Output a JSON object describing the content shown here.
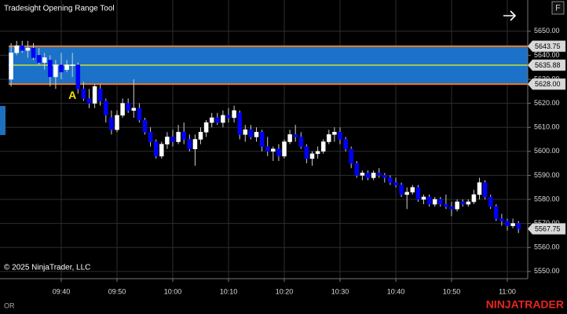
{
  "chart_data": {
    "type": "candlestick",
    "title": "Tradesight Opening Range Tool",
    "categories": [
      "09:31",
      "09:32",
      "09:33",
      "09:34",
      "09:35",
      "09:36",
      "09:37",
      "09:38",
      "09:39",
      "09:40",
      "09:41",
      "09:42",
      "09:43",
      "09:44",
      "09:45",
      "09:46",
      "09:47",
      "09:48",
      "09:49",
      "09:50",
      "09:51",
      "09:52",
      "09:53",
      "09:54",
      "09:55",
      "09:56",
      "09:57",
      "09:58",
      "09:59",
      "10:00",
      "10:01",
      "10:02",
      "10:03",
      "10:04",
      "10:05",
      "10:06",
      "10:07",
      "10:08",
      "10:09",
      "10:10",
      "10:11",
      "10:12",
      "10:13",
      "10:14",
      "10:15",
      "10:16",
      "10:17",
      "10:18",
      "10:19",
      "10:20",
      "10:21",
      "10:22",
      "10:23",
      "10:24",
      "10:25",
      "10:26",
      "10:27",
      "10:28",
      "10:29",
      "10:30",
      "10:31",
      "10:32",
      "10:33",
      "10:34",
      "10:35",
      "10:36",
      "10:37",
      "10:38",
      "10:39",
      "10:40",
      "10:41",
      "10:42",
      "10:43",
      "10:44",
      "10:45",
      "10:46",
      "10:47",
      "10:48",
      "10:49",
      "10:50",
      "10:51",
      "10:52",
      "10:53",
      "10:54",
      "10:55",
      "10:56",
      "10:57",
      "10:58",
      "10:59",
      "11:00",
      "11:01",
      "11:02"
    ],
    "open": [
      5630,
      5641,
      5644,
      5642,
      5643,
      5640,
      5637,
      5638,
      5631,
      5636,
      5634,
      5636,
      5636,
      5626,
      5622,
      5620,
      5626,
      5621,
      5614,
      5609,
      5615,
      5620,
      5617,
      5618,
      5613,
      5608,
      5604,
      5598,
      5603,
      5606,
      5604,
      5608,
      5605,
      5601,
      5605,
      5608,
      5612,
      5614,
      5612,
      5615,
      5614,
      5616,
      5607,
      5609,
      5606,
      5608,
      5602,
      5600,
      5601,
      5598,
      5604,
      5607,
      5606,
      5602,
      5597,
      5599,
      5600,
      5604,
      5607,
      5608,
      5605,
      5601,
      5595,
      5590,
      5591,
      5589,
      5591,
      5590,
      5589,
      5587,
      5586,
      5582,
      5583,
      5585,
      5580,
      5581,
      5578,
      5580,
      5578,
      5577,
      5576,
      5579,
      5578,
      5579,
      5582,
      5587,
      5581,
      5577,
      5572,
      5571,
      5569,
      5570
    ],
    "high": [
      5645,
      5646,
      5646,
      5646,
      5645,
      5643,
      5641,
      5640,
      5638,
      5641,
      5638,
      5641,
      5637,
      5629,
      5626,
      5628,
      5628,
      5622,
      5617,
      5617,
      5622,
      5622,
      5630,
      5620,
      5614,
      5610,
      5605,
      5604,
      5608,
      5609,
      5611,
      5612,
      5607,
      5607,
      5610,
      5613,
      5616,
      5616,
      5617,
      5618,
      5619,
      5617,
      5611,
      5611,
      5610,
      5609,
      5606,
      5602,
      5603,
      5605,
      5609,
      5611,
      5608,
      5603,
      5600,
      5602,
      5605,
      5609,
      5610,
      5610,
      5606,
      5602,
      5596,
      5592,
      5592,
      5592,
      5593,
      5591,
      5590,
      5589,
      5587,
      5585,
      5586,
      5586,
      5582,
      5582,
      5581,
      5581,
      5582,
      5579,
      5580,
      5580,
      5580,
      5584,
      5589,
      5588,
      5582,
      5578,
      5574,
      5572,
      5572,
      5571
    ],
    "low": [
      5627,
      5640,
      5641,
      5639,
      5638,
      5636,
      5634,
      5627,
      5626,
      5630,
      5633,
      5631,
      5624,
      5621,
      5618,
      5618,
      5619,
      5612,
      5607,
      5608,
      5614,
      5616,
      5614,
      5612,
      5607,
      5602,
      5597,
      5597,
      5601,
      5602,
      5603,
      5603,
      5600,
      5594,
      5603,
      5606,
      5610,
      5611,
      5610,
      5612,
      5612,
      5605,
      5604,
      5605,
      5604,
      5600,
      5598,
      5596,
      5596,
      5597,
      5603,
      5604,
      5601,
      5595,
      5594,
      5597,
      5599,
      5603,
      5604,
      5603,
      5600,
      5593,
      5589,
      5588,
      5588,
      5588,
      5589,
      5587,
      5586,
      5585,
      5581,
      5576,
      5582,
      5579,
      5578,
      5577,
      5577,
      5577,
      5576,
      5573,
      5575,
      5577,
      5577,
      5578,
      5580,
      5580,
      5576,
      5571,
      5569,
      5567,
      5568,
      5566
    ],
    "close": [
      5641,
      5644,
      5642,
      5643,
      5639,
      5637,
      5639,
      5631,
      5636,
      5633,
      5636,
      5636,
      5626,
      5622,
      5620,
      5627,
      5621,
      5615,
      5609,
      5615,
      5620,
      5617,
      5618,
      5613,
      5608,
      5604,
      5598,
      5603,
      5606,
      5604,
      5608,
      5605,
      5601,
      5605,
      5608,
      5612,
      5614,
      5612,
      5615,
      5614,
      5617,
      5607,
      5609,
      5606,
      5608,
      5602,
      5600,
      5601,
      5598,
      5604,
      5607,
      5606,
      5602,
      5597,
      5599,
      5600,
      5604,
      5607,
      5608,
      5605,
      5601,
      5595,
      5590,
      5591,
      5589,
      5591,
      5590,
      5589,
      5587,
      5586,
      5582,
      5583,
      5585,
      5580,
      5581,
      5578,
      5580,
      5578,
      5577,
      5576,
      5579,
      5578,
      5579,
      5582,
      5587,
      5581,
      5577,
      5572,
      5571,
      5569,
      5570,
      5567.75
    ],
    "up_color": "#ffffff",
    "down_color": "#0000ff",
    "ylim": [
      5547,
      5663
    ],
    "yticks": [
      {
        "value": 5550,
        "label": "5550.00"
      },
      {
        "value": 5560,
        "label": "5560.00"
      },
      {
        "value": 5570,
        "label": "5570.00"
      },
      {
        "value": 5580,
        "label": "5580.00"
      },
      {
        "value": 5590,
        "label": "5590.00"
      },
      {
        "value": 5600,
        "label": "5600.00"
      },
      {
        "value": 5610,
        "label": "5610.00"
      },
      {
        "value": 5620,
        "label": "5620.00"
      },
      {
        "value": 5630,
        "label": "5630.00"
      },
      {
        "value": 5640,
        "label": "5640.00"
      },
      {
        "value": 5650,
        "label": "5650.00"
      }
    ],
    "xticks": [
      "09:40",
      "09:50",
      "10:00",
      "10:10",
      "10:20",
      "10:30",
      "10:40",
      "10:50",
      "11:00"
    ],
    "grid": true,
    "opening_range": {
      "high": {
        "value": 5643.75,
        "label": "5643.75"
      },
      "mid": {
        "value": 5635.88,
        "label": "5635.88"
      },
      "low": {
        "value": 5628,
        "label": "5628.00"
      },
      "start": "09:31",
      "fill": "#1b72c8",
      "border": "#f07a1e",
      "mid_color": "#c8e23a"
    },
    "annotation": {
      "text": "A",
      "x": "09:42",
      "color": "#f2e400"
    },
    "last_label": "5567.75",
    "copyright": "© 2025 NinjaTrader, LLC",
    "tab": "OR",
    "brand": "NINJATRADER",
    "button": "F"
  }
}
